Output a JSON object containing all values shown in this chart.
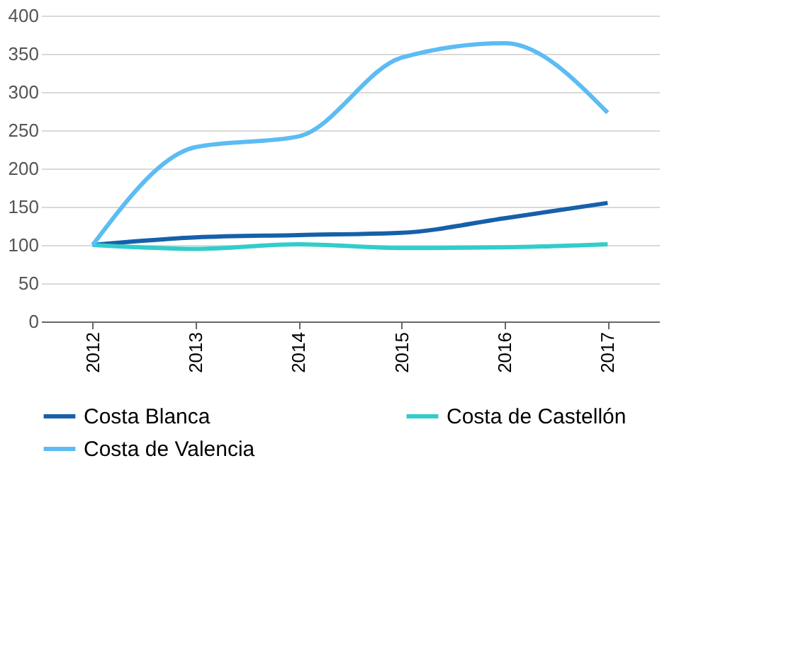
{
  "chart_data": {
    "type": "line",
    "categories": [
      "2012",
      "2013",
      "2014",
      "2015",
      "2016",
      "2017"
    ],
    "series": [
      {
        "name": "Costa Blanca",
        "color": "#1660aa",
        "values": [
          100,
          110,
          113,
          116,
          135,
          155
        ]
      },
      {
        "name": "Costa de Castellón",
        "color": "#33cccc",
        "values": [
          100,
          95,
          101,
          96,
          97,
          101
        ]
      },
      {
        "name": "Costa de Valencia",
        "color": "#5cbcf4",
        "values": [
          100,
          228,
          242,
          345,
          364,
          273
        ]
      }
    ],
    "ylim": [
      0,
      400
    ],
    "yticks": [
      0,
      50,
      100,
      150,
      200,
      250,
      300,
      350,
      400
    ],
    "grid": "y",
    "legend": "bottom",
    "marker": "none",
    "line_style": "solid"
  }
}
